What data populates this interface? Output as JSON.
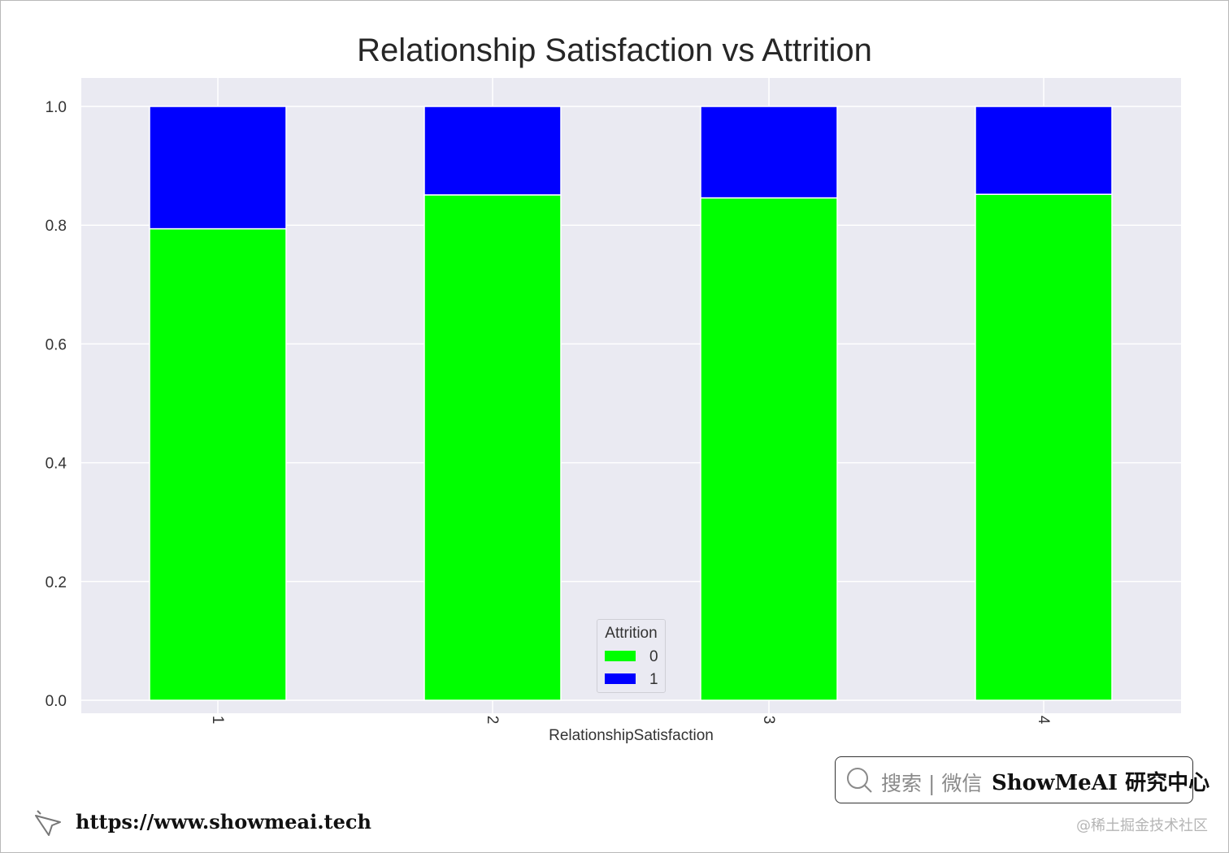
{
  "chart_data": {
    "type": "bar",
    "stacked": true,
    "title": "Relationship Satisfaction vs Attrition",
    "xlabel": "RelationshipSatisfaction",
    "ylabel": "",
    "categories": [
      "1",
      "2",
      "3",
      "4"
    ],
    "series": [
      {
        "name": "0",
        "color": "#00ff00",
        "values": [
          0.794,
          0.851,
          0.846,
          0.852
        ]
      },
      {
        "name": "1",
        "color": "#0000ff",
        "values": [
          0.206,
          0.149,
          0.154,
          0.148
        ]
      }
    ],
    "ylim": [
      0.0,
      1.0
    ],
    "yticks": [
      "0.0",
      "0.2",
      "0.4",
      "0.6",
      "0.8",
      "1.0"
    ],
    "ytick_values": [
      0.0,
      0.2,
      0.4,
      0.6,
      0.8,
      1.0
    ],
    "grid": true,
    "legend": {
      "title": "Attrition",
      "placement": "lower-center"
    }
  },
  "footer": {
    "search_text": "搜索 | 微信",
    "brand": "ShowMeAI 研究中心",
    "url": "https://www.showmeai.tech",
    "watermark": "@稀土掘金技术社区"
  },
  "colors": {
    "plot_background": "#eaeaf2",
    "grid": "#ffffff"
  }
}
